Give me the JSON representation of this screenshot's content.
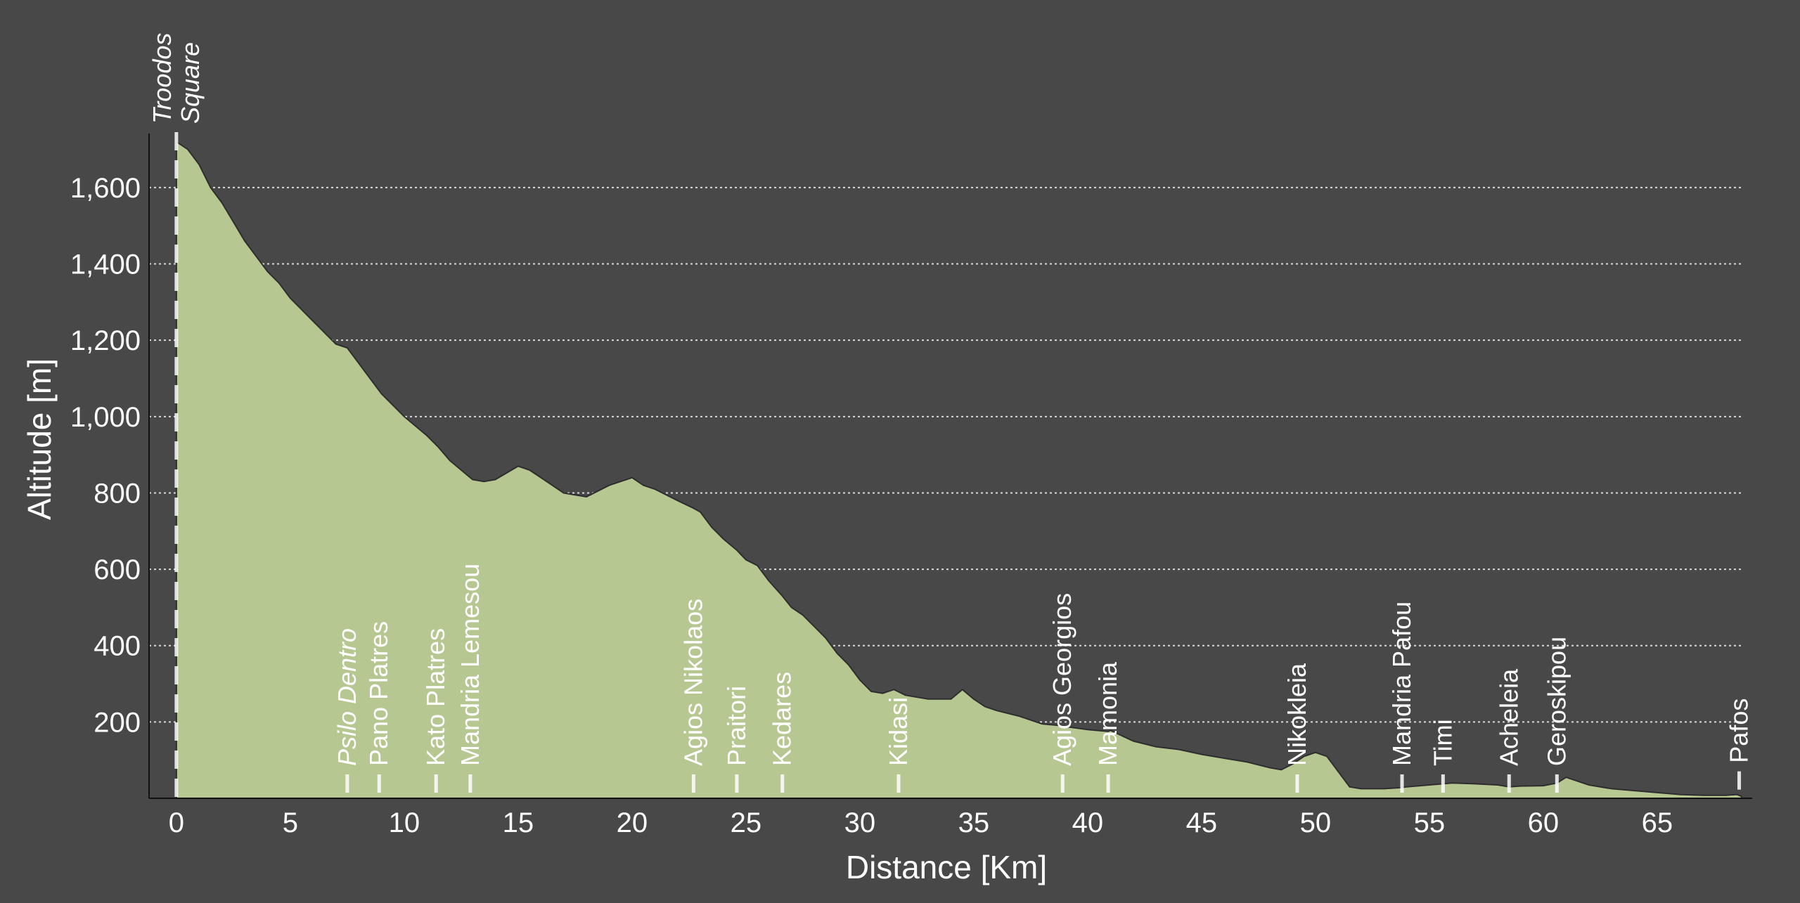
{
  "chart_data": {
    "type": "area",
    "xlabel": "Distance [Km]",
    "ylabel": "Altitude [m]",
    "xlim": [
      -1.2,
      68.8
    ],
    "ylim": [
      0,
      1760
    ],
    "grid": true,
    "x_ticks": [
      0,
      5,
      10,
      15,
      20,
      25,
      30,
      35,
      40,
      45,
      50,
      55,
      60,
      65
    ],
    "x_tick_labels": [
      "0",
      "5",
      "10",
      "15",
      "20",
      "25",
      "30",
      "35",
      "40",
      "45",
      "50",
      "55",
      "60",
      "65"
    ],
    "y_ticks": [
      200,
      400,
      600,
      800,
      1000,
      1200,
      1400,
      1600
    ],
    "y_tick_labels": [
      "200",
      "400",
      "600",
      "800",
      "1,000",
      "1,200",
      "1,400",
      "1,600"
    ],
    "colors": {
      "fill": "#b7c792",
      "background": "#484848",
      "grid": "#d9d9d9",
      "marker": "#ffffff"
    },
    "profile": {
      "x": [
        0,
        0.5,
        1,
        1.5,
        2,
        2.5,
        3,
        3.5,
        4,
        4.5,
        5,
        5.5,
        6,
        6.5,
        7,
        7.5,
        8,
        8.5,
        9,
        9.5,
        10,
        10.5,
        11,
        11.5,
        12,
        12.5,
        13,
        13.5,
        14,
        15,
        15.5,
        16,
        17,
        18,
        19,
        20,
        20.5,
        21,
        22,
        22.7,
        23,
        23.5,
        24,
        24.6,
        25,
        25.5,
        26,
        26.6,
        27,
        27.5,
        28,
        28.5,
        29,
        29.5,
        30,
        30.5,
        31,
        31.5,
        32,
        33,
        34,
        34.5,
        35,
        35.5,
        36,
        37,
        38,
        38.9,
        39,
        40,
        40.9,
        41,
        42,
        43,
        44,
        45,
        46,
        47,
        48,
        48.5,
        49,
        49.5,
        50,
        50.5,
        51,
        51.5,
        52,
        52.5,
        53,
        53.8,
        54,
        55,
        55.6,
        56,
        57,
        58,
        58.5,
        59,
        60,
        60.6,
        61,
        61.5,
        62,
        63,
        64,
        65,
        66,
        67,
        68,
        68.5,
        68.7
      ],
      "y": [
        1720,
        1700,
        1660,
        1600,
        1560,
        1510,
        1460,
        1420,
        1380,
        1350,
        1310,
        1280,
        1250,
        1220,
        1190,
        1180,
        1140,
        1100,
        1060,
        1030,
        1000,
        975,
        950,
        920,
        885,
        860,
        835,
        830,
        835,
        870,
        860,
        840,
        800,
        790,
        820,
        840,
        820,
        810,
        780,
        760,
        750,
        710,
        680,
        650,
        625,
        610,
        570,
        530,
        500,
        480,
        450,
        420,
        380,
        350,
        310,
        280,
        275,
        285,
        270,
        260,
        260,
        285,
        260,
        240,
        230,
        215,
        195,
        190,
        188,
        180,
        175,
        178,
        150,
        135,
        128,
        115,
        105,
        95,
        80,
        75,
        90,
        110,
        120,
        110,
        70,
        30,
        25,
        25,
        25,
        28,
        30,
        35,
        38,
        40,
        38,
        35,
        30,
        32,
        33,
        40,
        55,
        45,
        35,
        25,
        20,
        15,
        10,
        8,
        8,
        10,
        5
      ]
    },
    "locations": [
      {
        "name": "Troodos Square",
        "lines": [
          "Troodos",
          "Square"
        ],
        "italic": true,
        "km": 0
      },
      {
        "name": "Psilo Dentro",
        "lines": [
          "Psilo Dentro"
        ],
        "italic": true,
        "km": 7.5
      },
      {
        "name": "Pano Platres",
        "lines": [
          "Pano Platres"
        ],
        "italic": false,
        "km": 8.9
      },
      {
        "name": "Kato Platres",
        "lines": [
          "Kato Platres"
        ],
        "italic": false,
        "km": 11.4
      },
      {
        "name": "Mandria Lemesou",
        "lines": [
          "Mandria Lemesou"
        ],
        "italic": false,
        "km": 12.9
      },
      {
        "name": "Agios Nikolaos",
        "lines": [
          "Agios Nikolaos"
        ],
        "italic": false,
        "km": 22.7
      },
      {
        "name": "Praitori",
        "lines": [
          "Praitori"
        ],
        "italic": false,
        "km": 24.6
      },
      {
        "name": "Kedares",
        "lines": [
          "Kedares"
        ],
        "italic": false,
        "km": 26.6
      },
      {
        "name": "Kidasi",
        "lines": [
          "Kidasi"
        ],
        "italic": false,
        "km": 31.7
      },
      {
        "name": "Agios Georgios",
        "lines": [
          "Agios Georgios"
        ],
        "italic": false,
        "km": 38.9
      },
      {
        "name": "Mamonia",
        "lines": [
          "Mamonia"
        ],
        "italic": false,
        "km": 40.9
      },
      {
        "name": "Nikokleia",
        "lines": [
          "Nikokleia"
        ],
        "italic": false,
        "km": 49.2
      },
      {
        "name": "Mandria Pafou",
        "lines": [
          "Mandria Pafou"
        ],
        "italic": false,
        "km": 53.8
      },
      {
        "name": "Timi",
        "lines": [
          "Timi"
        ],
        "italic": false,
        "km": 55.6
      },
      {
        "name": "Acheleia",
        "lines": [
          "Acheleia"
        ],
        "italic": false,
        "km": 58.5
      },
      {
        "name": "Geroskipou",
        "lines": [
          "Geroskipou"
        ],
        "italic": false,
        "km": 60.6
      },
      {
        "name": "Pafos",
        "lines": [
          "Pafos"
        ],
        "italic": false,
        "km": 68.6
      }
    ]
  }
}
